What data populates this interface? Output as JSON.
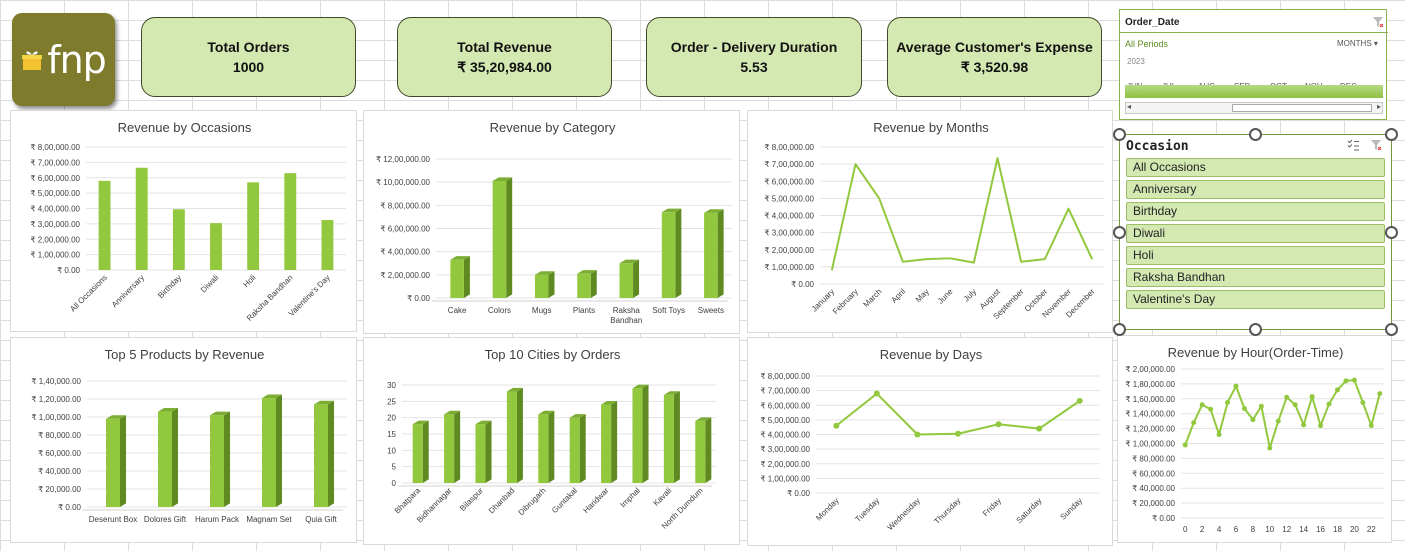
{
  "logo": {
    "text": "fnp"
  },
  "kpis": [
    {
      "label": "Total Orders",
      "value": "1000"
    },
    {
      "label": "Total Revenue",
      "value": "₹ 35,20,984.00"
    },
    {
      "label": "Order - Delivery Duration",
      "value": "5.53"
    },
    {
      "label": "Average Customer's Expense",
      "value": "₹ 3,520.98"
    }
  ],
  "date_slicer": {
    "title": "Order_Date",
    "period_label": "All Periods",
    "unit_label": "MONTHS",
    "year": "2023",
    "months": [
      "JUN",
      "JUL",
      "AUG",
      "SEP",
      "OCT",
      "NOV",
      "DEC"
    ]
  },
  "occasion_slicer": {
    "title": "Occasion",
    "items": [
      "All Occasions",
      "Anniversary",
      "Birthday",
      "Diwali",
      "Holi",
      "Raksha Bandhan",
      "Valentine's Day"
    ]
  },
  "colors": {
    "accent": "#92c83e",
    "accent_dark": "#5f8a22",
    "kpi_bg": "#d4e8b2",
    "logo_bg": "#7e7b2c"
  },
  "chart_data": [
    {
      "id": "occasions",
      "type": "bar",
      "title": "Revenue by Occasions",
      "categories": [
        "All Occasions",
        "Anniversary",
        "Birthday",
        "Diwali",
        "Holi",
        "Raksha Bandhan",
        "Valentine's Day"
      ],
      "values": [
        580000,
        665000,
        395000,
        305000,
        570000,
        630000,
        325000
      ],
      "ylim": [
        0,
        800000
      ],
      "yticks": [
        "₹ 0.00",
        "₹ 1,00,000.00",
        "₹ 2,00,000.00",
        "₹ 3,00,000.00",
        "₹ 4,00,000.00",
        "₹ 5,00,000.00",
        "₹ 6,00,000.00",
        "₹ 7,00,000.00",
        "₹ 8,00,000.00"
      ]
    },
    {
      "id": "category",
      "type": "bar",
      "title": "Revenue by Category",
      "categories": [
        "Cake",
        "Colors",
        "Mugs",
        "Plants",
        "Raksha Bandhan",
        "Soft Toys",
        "Sweets"
      ],
      "values": [
        330000,
        1010000,
        200000,
        210000,
        300000,
        740000,
        735000
      ],
      "ylim": [
        0,
        1200000
      ],
      "yticks": [
        "₹ 0.00",
        "₹ 2,00,000.00",
        "₹ 4,00,000.00",
        "₹ 6,00,000.00",
        "₹ 8,00,000.00",
        "₹ 10,00,000.00",
        "₹ 12,00,000.00"
      ]
    },
    {
      "id": "months",
      "type": "line",
      "title": "Revenue by Months",
      "categories": [
        "January",
        "February",
        "March",
        "April",
        "May",
        "June",
        "July",
        "August",
        "September",
        "October",
        "November",
        "December"
      ],
      "values": [
        80000,
        700000,
        500000,
        130000,
        145000,
        150000,
        125000,
        735000,
        130000,
        145000,
        440000,
        145000
      ],
      "ylim": [
        0,
        800000
      ],
      "yticks": [
        "₹ 0.00",
        "₹ 1,00,000.00",
        "₹ 2,00,000.00",
        "₹ 3,00,000.00",
        "₹ 4,00,000.00",
        "₹ 5,00,000.00",
        "₹ 6,00,000.00",
        "₹ 7,00,000.00",
        "₹ 8,00,000.00"
      ]
    },
    {
      "id": "products",
      "type": "bar",
      "title": "Top 5 Products by Revenue",
      "categories": [
        "Deserunt Box",
        "Dolores Gift",
        "Harum Pack",
        "Magnam Set",
        "Quia Gift"
      ],
      "values": [
        98000,
        106000,
        102000,
        121000,
        114000
      ],
      "ylim": [
        0,
        140000
      ],
      "yticks": [
        "₹ 0.00",
        "₹ 20,000.00",
        "₹ 40,000.00",
        "₹ 60,000.00",
        "₹ 80,000.00",
        "₹ 1,00,000.00",
        "₹ 1,20,000.00",
        "₹ 1,40,000.00"
      ]
    },
    {
      "id": "cities",
      "type": "bar",
      "title": "Top 10 Cities by Orders",
      "categories": [
        "Bhatpara",
        "Bidhannagar",
        "Bilaspur",
        "Dhanbad",
        "Dibrugarh",
        "Guntakal",
        "Haridwar",
        "Imphal",
        "Kavali",
        "North Dumdum"
      ],
      "values": [
        18,
        21,
        18,
        28,
        21,
        20,
        24,
        29,
        27,
        19
      ],
      "ylim": [
        0,
        30
      ],
      "yticks": [
        "0",
        "5",
        "10",
        "15",
        "20",
        "25",
        "30"
      ]
    },
    {
      "id": "days",
      "type": "line",
      "title": "Revenue by Days",
      "categories": [
        "Monday",
        "Tuesday",
        "Wednesday",
        "Thursday",
        "Friday",
        "Saturday",
        "Sunday"
      ],
      "values": [
        460000,
        680000,
        400000,
        405000,
        470000,
        440000,
        630000
      ],
      "ylim": [
        0,
        800000
      ],
      "yticks": [
        "₹ 0.00",
        "₹ 1,00,000.00",
        "₹ 2,00,000.00",
        "₹ 3,00,000.00",
        "₹ 4,00,000.00",
        "₹ 5,00,000.00",
        "₹ 6,00,000.00",
        "₹ 7,00,000.00",
        "₹ 8,00,000.00"
      ]
    },
    {
      "id": "hours",
      "type": "line",
      "title": "Revenue by Hour(Order-Time)",
      "categories": [
        "0",
        "1",
        "2",
        "3",
        "4",
        "5",
        "6",
        "7",
        "8",
        "9",
        "10",
        "11",
        "12",
        "13",
        "14",
        "15",
        "16",
        "17",
        "18",
        "19",
        "20",
        "21",
        "22",
        "23"
      ],
      "xlabels": [
        "0",
        "2",
        "4",
        "6",
        "8",
        "10",
        "12",
        "14",
        "16",
        "18",
        "20",
        "22"
      ],
      "values": [
        98000,
        128000,
        152000,
        146000,
        112000,
        155000,
        177000,
        147000,
        132000,
        150000,
        94000,
        130000,
        162000,
        152000,
        125000,
        163000,
        124000,
        153000,
        172000,
        184000,
        185000,
        155000,
        124000,
        167000
      ],
      "ylim": [
        0,
        200000
      ],
      "yticks": [
        "₹ 0.00",
        "₹ 20,000.00",
        "₹ 40,000.00",
        "₹ 60,000.00",
        "₹ 80,000.00",
        "₹ 1,00,000.00",
        "₹ 1,20,000.00",
        "₹ 1,40,000.00",
        "₹ 1,60,000.00",
        "₹ 1,80,000.00",
        "₹ 2,00,000.00"
      ]
    }
  ]
}
